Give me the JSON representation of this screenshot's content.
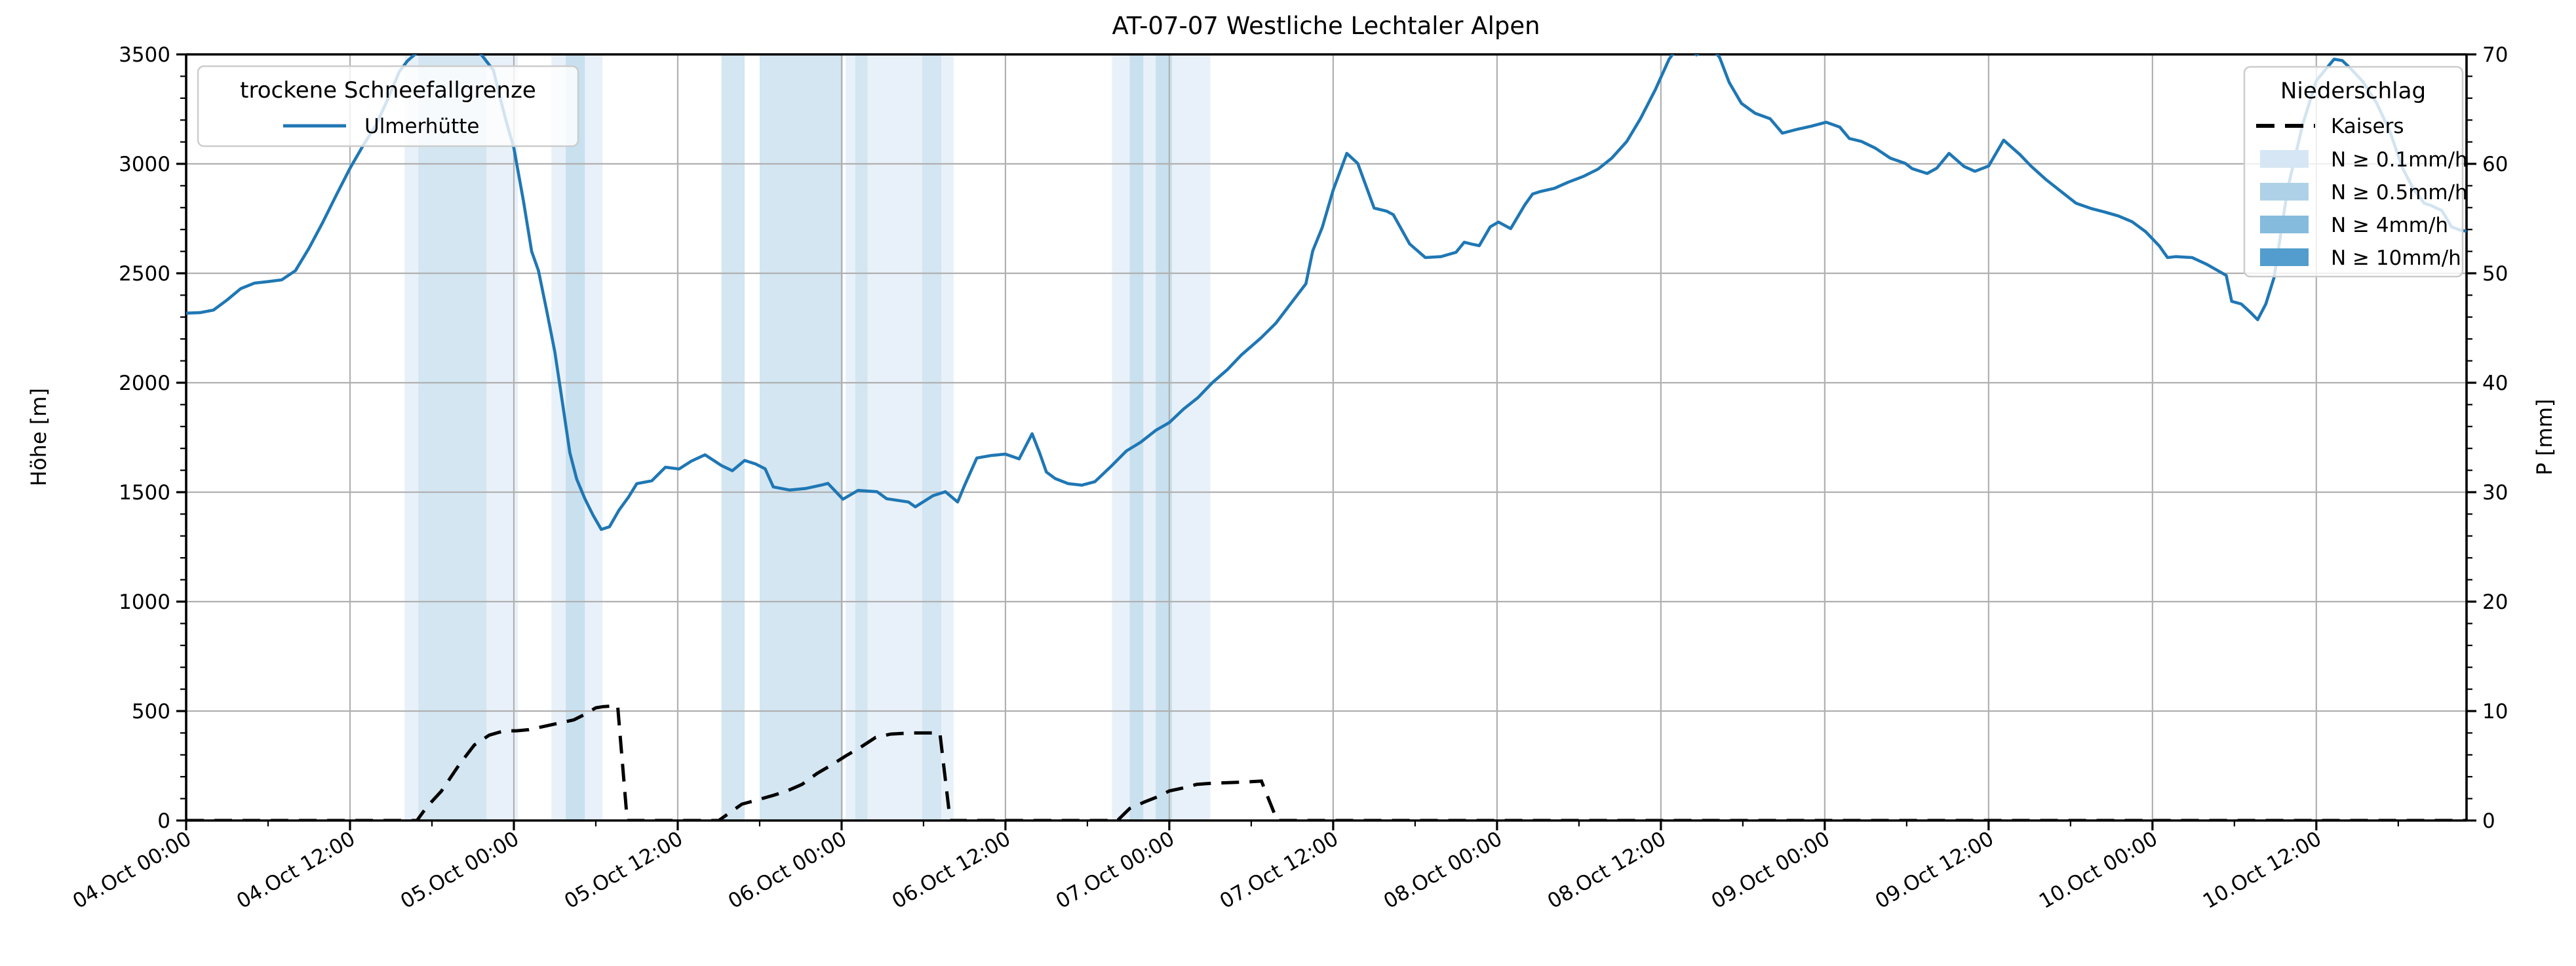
{
  "title": "AT-07-07 Westliche Lechtaler Alpen",
  "axes": {
    "ylabel_left": "Höhe [m]",
    "ylabel_right": "P [mm]",
    "ylim_left": [
      0,
      3500
    ],
    "ylim_right": [
      0,
      70
    ],
    "yticks_left": [
      "0",
      "500",
      "1000",
      "1500",
      "2000",
      "2500",
      "3000",
      "3500"
    ],
    "yticks_right": [
      "0",
      "10",
      "20",
      "30",
      "40",
      "50",
      "60",
      "70"
    ],
    "xtick_labels": [
      "04.Oct 00:00",
      "04.Oct 12:00",
      "05.Oct 00:00",
      "05.Oct 12:00",
      "06.Oct 00:00",
      "06.Oct 12:00",
      "07.Oct 00:00",
      "07.Oct 12:00",
      "08.Oct 00:00",
      "08.Oct 12:00",
      "09.Oct 00:00",
      "09.Oct 12:00",
      "10.Oct 00:00",
      "10.Oct 12:00"
    ],
    "xtick_hours": [
      0,
      12,
      24,
      36,
      48,
      60,
      72,
      84,
      96,
      108,
      120,
      132,
      144,
      156
    ],
    "x_total_hours": 167,
    "grid": true
  },
  "legend_left": {
    "title": "trockene Schneefallgrenze",
    "items": [
      {
        "label": "Ulmerhütte",
        "type": "line",
        "color": "#1f77b4"
      }
    ]
  },
  "legend_right": {
    "title": "Niederschlag",
    "items": [
      {
        "label": "Kaisers",
        "type": "dashed-line",
        "color": "#000000"
      },
      {
        "label": "N ≥ 0.1mm/h",
        "type": "patch",
        "color": "#d6e6f4"
      },
      {
        "label": "N ≥ 0.5mm/h",
        "type": "patch",
        "color": "#aed1e7"
      },
      {
        "label": "N ≥ 4mm/h",
        "type": "patch",
        "color": "#85bbdc"
      },
      {
        "label": "N ≥ 10mm/h",
        "type": "patch",
        "color": "#529dcd"
      }
    ]
  },
  "colors": {
    "line_blue": "#1f77b4",
    "line_black": "#000000",
    "grid": "#b0b0b0",
    "spine": "#000000",
    "band_alpha": 0.55,
    "levels": {
      "0.1": "#d6e6f4",
      "0.5": "#aed1e7",
      "4": "#85bbdc",
      "10": "#529dcd"
    }
  },
  "chart_data": {
    "type": "line",
    "title": "AT-07-07 Westliche Lechtaler Alpen",
    "xlabel": "",
    "ylabel": "Höhe [m]",
    "ylabel2": "P [mm]",
    "x_unit": "hours since 04.Oct 00:00",
    "x_range_hours": [
      0,
      167
    ],
    "ylim": [
      0,
      3500
    ],
    "ylim2": [
      0,
      70
    ],
    "legend_position": [
      "upper left",
      "upper right"
    ],
    "series": [
      {
        "name": "Ulmerhütte (trockene Schneefallgrenze, m)",
        "axis": "left",
        "style": "solid",
        "color": "#1f77b4",
        "points": [
          [
            0,
            2318
          ],
          [
            1,
            2320
          ],
          [
            2,
            2332
          ],
          [
            3,
            2378
          ],
          [
            4,
            2430
          ],
          [
            5,
            2455
          ],
          [
            6,
            2462
          ],
          [
            7,
            2470
          ],
          [
            8,
            2512
          ],
          [
            9,
            2615
          ],
          [
            10,
            2732
          ],
          [
            11,
            2858
          ],
          [
            12,
            2980
          ],
          [
            13,
            3088
          ],
          [
            13.9,
            3177
          ],
          [
            14.8,
            3300
          ],
          [
            15.6,
            3420
          ],
          [
            16.2,
            3470
          ],
          [
            16.6,
            3492
          ],
          [
            17,
            3512
          ],
          [
            17.5,
            3528
          ],
          [
            18,
            3536
          ],
          [
            19,
            3540
          ],
          [
            19.5,
            3528
          ],
          [
            20,
            3538
          ],
          [
            21,
            3530
          ],
          [
            21.6,
            3500
          ],
          [
            22,
            3468
          ],
          [
            22.5,
            3428
          ],
          [
            23,
            3300
          ],
          [
            23.5,
            3180
          ],
          [
            24,
            3072
          ],
          [
            24.7,
            2830
          ],
          [
            25.3,
            2600
          ],
          [
            25.8,
            2512
          ],
          [
            26.4,
            2330
          ],
          [
            27,
            2140
          ],
          [
            27.6,
            1890
          ],
          [
            28.1,
            1680
          ],
          [
            28.6,
            1560
          ],
          [
            29.2,
            1470
          ],
          [
            29.8,
            1395
          ],
          [
            30.4,
            1330
          ],
          [
            31,
            1342
          ],
          [
            31.7,
            1418
          ],
          [
            32.4,
            1478
          ],
          [
            33,
            1539
          ],
          [
            34.1,
            1552
          ],
          [
            35.1,
            1614
          ],
          [
            36.1,
            1606
          ],
          [
            37,
            1642
          ],
          [
            38,
            1671
          ],
          [
            39.2,
            1622
          ],
          [
            40,
            1598
          ],
          [
            40.9,
            1645
          ],
          [
            41.7,
            1629
          ],
          [
            42.4,
            1607
          ],
          [
            43,
            1524
          ],
          [
            44.2,
            1510
          ],
          [
            45.4,
            1517
          ],
          [
            46.5,
            1532
          ],
          [
            47,
            1540
          ],
          [
            48.1,
            1468
          ],
          [
            49.2,
            1508
          ],
          [
            50.6,
            1502
          ],
          [
            51.3,
            1470
          ],
          [
            52.9,
            1455
          ],
          [
            53.4,
            1433
          ],
          [
            54.7,
            1484
          ],
          [
            55.6,
            1502
          ],
          [
            56.5,
            1455
          ],
          [
            57,
            1530
          ],
          [
            57.9,
            1656
          ],
          [
            59,
            1668
          ],
          [
            60,
            1674
          ],
          [
            61,
            1652
          ],
          [
            61.95,
            1767
          ],
          [
            62.5,
            1680
          ],
          [
            63,
            1592
          ],
          [
            63.65,
            1562
          ],
          [
            64.6,
            1539
          ],
          [
            65.6,
            1532
          ],
          [
            66.55,
            1548
          ],
          [
            67.8,
            1622
          ],
          [
            68.85,
            1688
          ],
          [
            69.9,
            1728
          ],
          [
            71,
            1782
          ],
          [
            72,
            1818
          ],
          [
            73.05,
            1880
          ],
          [
            74.1,
            1932
          ],
          [
            75.15,
            2000
          ],
          [
            76.25,
            2060
          ],
          [
            77.3,
            2128
          ],
          [
            78.7,
            2204
          ],
          [
            79.8,
            2272
          ],
          [
            80.9,
            2362
          ],
          [
            82,
            2452
          ],
          [
            82.5,
            2602
          ],
          [
            83.2,
            2710
          ],
          [
            84,
            2880
          ],
          [
            85,
            3048
          ],
          [
            85.8,
            3002
          ],
          [
            86.4,
            2900
          ],
          [
            87,
            2798
          ],
          [
            87.9,
            2784
          ],
          [
            88.4,
            2768
          ],
          [
            89.6,
            2634
          ],
          [
            90.75,
            2572
          ],
          [
            91.9,
            2576
          ],
          [
            93,
            2596
          ],
          [
            93.6,
            2642
          ],
          [
            94.1,
            2634
          ],
          [
            94.7,
            2626
          ],
          [
            95.5,
            2712
          ],
          [
            96.1,
            2734
          ],
          [
            97,
            2704
          ],
          [
            98.05,
            2814
          ],
          [
            98.6,
            2862
          ],
          [
            99.2,
            2874
          ],
          [
            100.2,
            2888
          ],
          [
            101.2,
            2916
          ],
          [
            102.3,
            2942
          ],
          [
            103.4,
            2976
          ],
          [
            104.4,
            3026
          ],
          [
            105.5,
            3102
          ],
          [
            106.5,
            3206
          ],
          [
            107.6,
            3340
          ],
          [
            108.6,
            3478
          ],
          [
            109.2,
            3530
          ],
          [
            110,
            3540
          ],
          [
            110.6,
            3498
          ],
          [
            111,
            3516
          ],
          [
            111.6,
            3540
          ],
          [
            112.3,
            3486
          ],
          [
            113,
            3372
          ],
          [
            113.9,
            3276
          ],
          [
            114.9,
            3231
          ],
          [
            116,
            3206
          ],
          [
            116.9,
            3140
          ],
          [
            118,
            3158
          ],
          [
            119,
            3172
          ],
          [
            120.1,
            3190
          ],
          [
            121.1,
            3168
          ],
          [
            121.8,
            3116
          ],
          [
            122.7,
            3102
          ],
          [
            123.7,
            3072
          ],
          [
            124.8,
            3026
          ],
          [
            125.9,
            3002
          ],
          [
            126.4,
            2978
          ],
          [
            127.5,
            2956
          ],
          [
            128.2,
            2980
          ],
          [
            129.1,
            3048
          ],
          [
            130.2,
            2988
          ],
          [
            131,
            2966
          ],
          [
            132,
            2990
          ],
          [
            133.1,
            3108
          ],
          [
            134.3,
            3042
          ],
          [
            135.1,
            2990
          ],
          [
            136.2,
            2928
          ],
          [
            137.3,
            2874
          ],
          [
            138.4,
            2820
          ],
          [
            139.5,
            2796
          ],
          [
            140.5,
            2780
          ],
          [
            141.5,
            2762
          ],
          [
            142.5,
            2736
          ],
          [
            143.5,
            2690
          ],
          [
            144.5,
            2625
          ],
          [
            145.1,
            2572
          ],
          [
            145.7,
            2576
          ],
          [
            146.9,
            2572
          ],
          [
            148,
            2540
          ],
          [
            149.4,
            2490
          ],
          [
            149.8,
            2372
          ],
          [
            150.5,
            2360
          ],
          [
            151.2,
            2320
          ],
          [
            151.7,
            2288
          ],
          [
            152.3,
            2360
          ],
          [
            152.9,
            2480
          ],
          [
            153.9,
            2886
          ],
          [
            155,
            3180
          ],
          [
            156,
            3380
          ],
          [
            157.3,
            3478
          ],
          [
            157.9,
            3472
          ],
          [
            158.6,
            3430
          ],
          [
            159.4,
            3376
          ],
          [
            160.4,
            3280
          ],
          [
            161.4,
            3146
          ],
          [
            162.3,
            2982
          ],
          [
            163.1,
            2886
          ],
          [
            163.9,
            2820
          ],
          [
            164.4,
            2810
          ],
          [
            165.2,
            2786
          ],
          [
            165.9,
            2712
          ],
          [
            166.5,
            2698
          ],
          [
            167,
            2692
          ]
        ]
      },
      {
        "name": "Kaisers (Niederschlag kumuliert, mm)",
        "axis": "right",
        "style": "dashed",
        "color": "#000000",
        "points": [
          [
            0,
            0
          ],
          [
            16.9,
            0
          ],
          [
            17.6,
            1.2
          ],
          [
            18.7,
            2.7
          ],
          [
            20,
            5.1
          ],
          [
            21.1,
            6.9
          ],
          [
            22.2,
            7.8
          ],
          [
            23.3,
            8.2
          ],
          [
            24.2,
            8.2
          ],
          [
            25.1,
            8.3
          ],
          [
            26.2,
            8.6
          ],
          [
            27.3,
            8.9
          ],
          [
            28.4,
            9.2
          ],
          [
            29.2,
            9.7
          ],
          [
            30,
            10.3
          ],
          [
            30.5,
            10.4
          ],
          [
            31.6,
            10.5
          ],
          [
            32.3,
            0
          ],
          [
            39,
            0
          ],
          [
            40.7,
            1.5
          ],
          [
            41.3,
            1.7
          ],
          [
            43,
            2.3
          ],
          [
            44,
            2.7
          ],
          [
            45.1,
            3.3
          ],
          [
            46.2,
            4.3
          ],
          [
            47.3,
            5.1
          ],
          [
            48.3,
            5.9
          ],
          [
            49.4,
            6.7
          ],
          [
            50.5,
            7.6
          ],
          [
            51.6,
            7.9
          ],
          [
            53,
            8.0
          ],
          [
            55.2,
            8.0
          ],
          [
            55.95,
            0
          ],
          [
            68.2,
            0
          ],
          [
            69.1,
            1.1
          ],
          [
            70.2,
            1.7
          ],
          [
            71.2,
            2.2
          ],
          [
            72,
            2.7
          ],
          [
            73.1,
            3.0
          ],
          [
            74,
            3.3
          ],
          [
            75.1,
            3.4
          ],
          [
            77.3,
            3.5
          ],
          [
            78.75,
            3.6
          ],
          [
            79.9,
            0
          ],
          [
            167,
            0
          ]
        ]
      }
    ],
    "precip_intensity_bands": [
      {
        "start_h": 16,
        "end_h": 17,
        "level": "0.1"
      },
      {
        "start_h": 17,
        "end_h": 22,
        "level": "0.5"
      },
      {
        "start_h": 22,
        "end_h": 24.3,
        "level": "0.1"
      },
      {
        "start_h": 26.75,
        "end_h": 30.5,
        "level": "0.1"
      },
      {
        "start_h": 27.8,
        "end_h": 29.2,
        "level": "0.5"
      },
      {
        "start_h": 39.2,
        "end_h": 40.9,
        "level": "0.5"
      },
      {
        "start_h": 42,
        "end_h": 48.1,
        "level": "0.5"
      },
      {
        "start_h": 48.3,
        "end_h": 49,
        "level": "0.1"
      },
      {
        "start_h": 49,
        "end_h": 49.9,
        "level": "0.5"
      },
      {
        "start_h": 49.9,
        "end_h": 53.9,
        "level": "0.1"
      },
      {
        "start_h": 53.9,
        "end_h": 55.3,
        "level": "0.5"
      },
      {
        "start_h": 55.3,
        "end_h": 56.2,
        "level": "0.1"
      },
      {
        "start_h": 67.8,
        "end_h": 75,
        "level": "0.1"
      },
      {
        "start_h": 69.1,
        "end_h": 70.1,
        "level": "0.5"
      },
      {
        "start_h": 71,
        "end_h": 72.2,
        "level": "0.5"
      }
    ]
  }
}
